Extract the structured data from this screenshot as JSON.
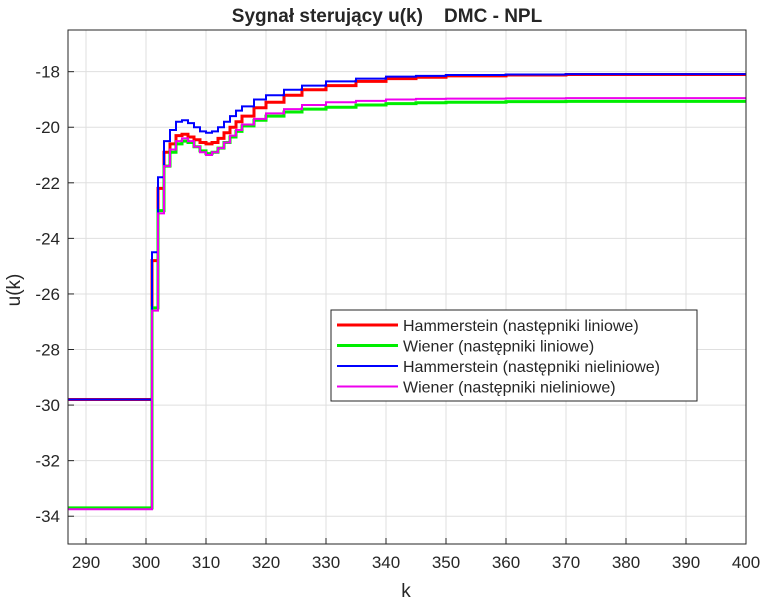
{
  "chart_data": {
    "type": "line",
    "title": "Sygnał sterujący u(k)    DMC - NPL",
    "xlabel": "k",
    "ylabel": "u(k)",
    "xlim": [
      287,
      400
    ],
    "ylim": [
      -35,
      -16.5
    ],
    "xticks": [
      290,
      300,
      310,
      320,
      330,
      340,
      350,
      360,
      370,
      380,
      390,
      400
    ],
    "yticks": [
      -34,
      -32,
      -30,
      -28,
      -26,
      -24,
      -22,
      -20,
      -18
    ],
    "grid": true,
    "legend_position": "lower-right-center",
    "series": [
      {
        "name": "Hammerstein (następniki liniowe)",
        "color": "#ff0000",
        "line_width": 3,
        "x": [
          287,
          300,
          301,
          302,
          303,
          304,
          305,
          306,
          307,
          308,
          309,
          310,
          311,
          312,
          313,
          314,
          315,
          316,
          318,
          320,
          323,
          326,
          330,
          335,
          340,
          345,
          350,
          360,
          370,
          380,
          390,
          400
        ],
        "y": [
          -29.8,
          -29.8,
          -24.8,
          -22.2,
          -20.9,
          -20.6,
          -20.3,
          -20.25,
          -20.35,
          -20.45,
          -20.55,
          -20.6,
          -20.55,
          -20.4,
          -20.2,
          -20.0,
          -19.8,
          -19.6,
          -19.3,
          -19.1,
          -18.85,
          -18.65,
          -18.5,
          -18.35,
          -18.25,
          -18.2,
          -18.15,
          -18.12,
          -18.1,
          -18.1,
          -18.1,
          -18.1
        ]
      },
      {
        "name": "Wiener (następniki liniowe)",
        "color": "#00ee00",
        "line_width": 3,
        "x": [
          287,
          300,
          301,
          302,
          303,
          304,
          305,
          306,
          307,
          308,
          309,
          310,
          311,
          312,
          313,
          314,
          315,
          316,
          318,
          320,
          323,
          326,
          330,
          335,
          340,
          345,
          350,
          360,
          370,
          380,
          390,
          400
        ],
        "y": [
          -33.7,
          -33.7,
          -26.5,
          -23.0,
          -21.4,
          -20.9,
          -20.6,
          -20.5,
          -20.55,
          -20.7,
          -20.85,
          -20.95,
          -20.9,
          -20.75,
          -20.55,
          -20.35,
          -20.15,
          -19.95,
          -19.75,
          -19.6,
          -19.45,
          -19.35,
          -19.28,
          -19.2,
          -19.15,
          -19.12,
          -19.1,
          -19.08,
          -19.07,
          -19.07,
          -19.07,
          -19.07
        ]
      },
      {
        "name": "Hammerstein (następniki nieliniowe)",
        "color": "#0000ff",
        "line_width": 2,
        "x": [
          287,
          300,
          301,
          302,
          303,
          304,
          305,
          306,
          307,
          308,
          309,
          310,
          311,
          312,
          313,
          314,
          315,
          316,
          318,
          320,
          323,
          326,
          330,
          335,
          340,
          345,
          350,
          360,
          370,
          380,
          390,
          400
        ],
        "y": [
          -29.8,
          -29.8,
          -24.5,
          -21.8,
          -20.5,
          -20.1,
          -19.8,
          -19.75,
          -19.85,
          -20.0,
          -20.15,
          -20.2,
          -20.15,
          -20.0,
          -19.8,
          -19.6,
          -19.4,
          -19.25,
          -19.0,
          -18.85,
          -18.65,
          -18.5,
          -18.35,
          -18.25,
          -18.18,
          -18.15,
          -18.12,
          -18.1,
          -18.09,
          -18.09,
          -18.09,
          -18.09
        ]
      },
      {
        "name": "Wiener (następniki nieliniowe)",
        "color": "#ee00ee",
        "line_width": 2,
        "x": [
          287,
          300,
          301,
          302,
          303,
          304,
          305,
          306,
          307,
          308,
          309,
          310,
          311,
          312,
          313,
          314,
          315,
          316,
          318,
          320,
          323,
          326,
          330,
          335,
          340,
          345,
          350,
          360,
          370,
          380,
          390,
          400
        ],
        "y": [
          -33.75,
          -33.75,
          -26.6,
          -23.1,
          -21.4,
          -20.8,
          -20.5,
          -20.4,
          -20.5,
          -20.7,
          -20.9,
          -21.0,
          -20.9,
          -20.75,
          -20.55,
          -20.3,
          -20.1,
          -19.9,
          -19.7,
          -19.5,
          -19.35,
          -19.2,
          -19.1,
          -19.05,
          -19.0,
          -18.98,
          -18.97,
          -18.96,
          -18.95,
          -18.95,
          -18.95,
          -18.95
        ]
      }
    ]
  }
}
